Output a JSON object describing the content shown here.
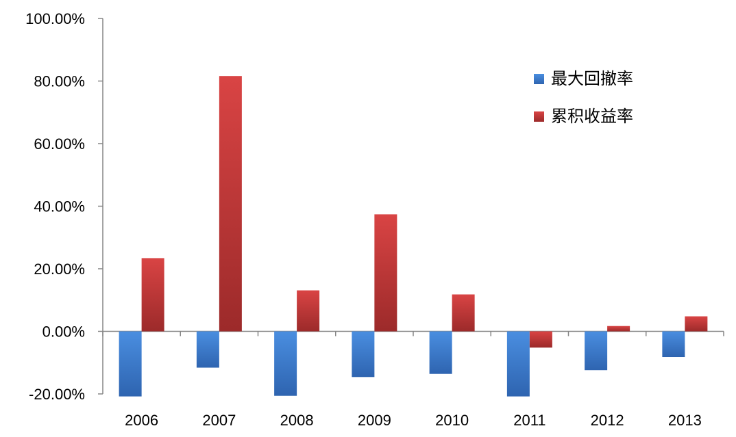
{
  "chart_data": {
    "type": "bar",
    "categories": [
      "2006",
      "2007",
      "2008",
      "2009",
      "2010",
      "2011",
      "2012",
      "2013"
    ],
    "series": [
      {
        "name": "最大回撤率",
        "values": [
          -20.8,
          -11.6,
          -20.6,
          -14.6,
          -13.6,
          -20.8,
          -12.4,
          -8.2
        ],
        "color": "#3f7ed3"
      },
      {
        "name": "累积收益率",
        "values": [
          23.4,
          81.6,
          13.1,
          37.4,
          11.8,
          -5.2,
          1.7,
          4.8
        ],
        "color": "#c63a3a"
      }
    ],
    "title": "",
    "xlabel": "",
    "ylabel": "",
    "ylim": [
      -20,
      100
    ],
    "yticks": [
      "100.00%",
      "80.00%",
      "60.00%",
      "40.00%",
      "20.00%",
      "0.00%",
      "-20.00%"
    ],
    "ytick_values": [
      100,
      80,
      60,
      40,
      20,
      0,
      -20
    ],
    "grid": false,
    "legend_position": "top-right"
  }
}
